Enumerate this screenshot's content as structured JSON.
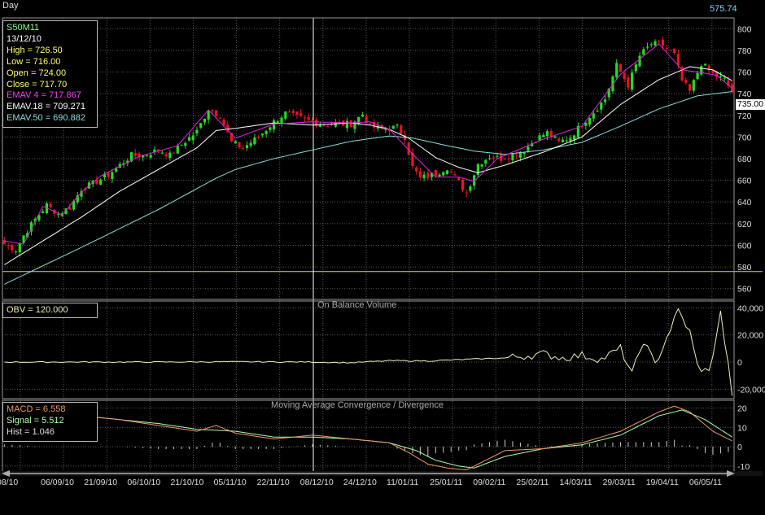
{
  "header": {
    "period": "Day",
    "last_value": "575.74",
    "price_tag": "735.00"
  },
  "info": {
    "price": [
      "S50M11",
      "13/12/10",
      "High  = 726.50",
      "Low   = 716.00",
      "Open  = 724.00",
      "Close = 717.70",
      "EMAV 4 = 717.867",
      "EMAV.18 = 709.271",
      "EMAV.50 = 690.882"
    ],
    "obv": "OBV = 120.000",
    "macd": [
      "MACD = 6.558",
      "Signal = 5.512",
      "Hist = 1.046"
    ]
  },
  "colors": {
    "bull": "#22dd22",
    "bear": "#ee1122",
    "ema4": "#dd22dd",
    "ema18": "#ffffff",
    "ema50": "#88dddd",
    "obv": "#eeeebb",
    "macd": "#ee9966",
    "signal": "#aaffaa",
    "hist": "#cccccc",
    "grid": "#5a5a5a",
    "crosshair": "#ffffff",
    "hline": "#dddd33"
  },
  "chart_data": [
    {
      "type": "candlestick",
      "series_names": [
        "EMAV 4",
        "EMAV.18",
        "EMAV.50"
      ],
      "y_ticks": [
        560,
        580,
        600,
        620,
        640,
        660,
        680,
        700,
        720,
        740,
        760,
        780,
        800
      ],
      "ylim": [
        550,
        810
      ],
      "horizontal_line": 575.74,
      "x_labels": [
        "08/10",
        "06/09/10",
        "21/09/10",
        "06/10/10",
        "21/10/10",
        "05/11/10",
        "22/11/10",
        "08/12/10",
        "24/12/10",
        "11/01/11",
        "25/01/11",
        "09/02/11",
        "25/02/11",
        "14/03/11",
        "29/03/11",
        "19/04/11",
        "06/05/11"
      ],
      "close_keypoints": [
        [
          0,
          601
        ],
        [
          3,
          596
        ],
        [
          5,
          609
        ],
        [
          8,
          624
        ],
        [
          11,
          637
        ],
        [
          14,
          629
        ],
        [
          17,
          635
        ],
        [
          20,
          652
        ],
        [
          23,
          657
        ],
        [
          27,
          665
        ],
        [
          30,
          674
        ],
        [
          33,
          683
        ],
        [
          36,
          683
        ],
        [
          40,
          688
        ],
        [
          43,
          683
        ],
        [
          46,
          693
        ],
        [
          50,
          705
        ],
        [
          53,
          726
        ],
        [
          56,
          720
        ],
        [
          59,
          695
        ],
        [
          62,
          690
        ],
        [
          66,
          700
        ],
        [
          70,
          714
        ],
        [
          73,
          722
        ],
        [
          76,
          718
        ],
        [
          79,
          715
        ],
        [
          83,
          711
        ],
        [
          87,
          712
        ],
        [
          90,
          712
        ],
        [
          93,
          721
        ],
        [
          95,
          710
        ],
        [
          98,
          707
        ],
        [
          102,
          709
        ],
        [
          104,
          700
        ],
        [
          106,
          672
        ],
        [
          108,
          662
        ],
        [
          112,
          666
        ],
        [
          115,
          672
        ],
        [
          118,
          658
        ],
        [
          120,
          648
        ],
        [
          123,
          675
        ],
        [
          126,
          682
        ],
        [
          129,
          680
        ],
        [
          132,
          684
        ],
        [
          135,
          688
        ],
        [
          138,
          698
        ],
        [
          141,
          704
        ],
        [
          144,
          695
        ],
        [
          147,
          700
        ],
        [
          150,
          712
        ],
        [
          153,
          723
        ],
        [
          156,
          735
        ],
        [
          159,
          766
        ],
        [
          162,
          748
        ],
        [
          165,
          775
        ],
        [
          168,
          786
        ],
        [
          171,
          785
        ],
        [
          174,
          776
        ],
        [
          176,
          752
        ],
        [
          178,
          742
        ],
        [
          181,
          768
        ],
        [
          184,
          758
        ],
        [
          187,
          753
        ],
        [
          189,
          742
        ]
      ],
      "emav4_keypoints": [
        [
          0,
          604
        ],
        [
          5,
          601
        ],
        [
          10,
          636
        ],
        [
          15,
          628
        ],
        [
          20,
          649
        ],
        [
          25,
          664
        ],
        [
          35,
          682
        ],
        [
          45,
          692
        ],
        [
          53,
          725
        ],
        [
          60,
          699
        ],
        [
          70,
          712
        ],
        [
          80,
          714
        ],
        [
          90,
          713
        ],
        [
          95,
          714
        ],
        [
          100,
          707
        ],
        [
          105,
          688
        ],
        [
          112,
          663
        ],
        [
          118,
          663
        ],
        [
          122,
          659
        ],
        [
          128,
          680
        ],
        [
          140,
          698
        ],
        [
          150,
          710
        ],
        [
          160,
          758
        ],
        [
          170,
          786
        ],
        [
          176,
          762
        ],
        [
          180,
          760
        ],
        [
          185,
          757
        ],
        [
          189,
          745
        ]
      ],
      "emav18_keypoints": [
        [
          0,
          582
        ],
        [
          10,
          604
        ],
        [
          20,
          626
        ],
        [
          30,
          650
        ],
        [
          40,
          670
        ],
        [
          50,
          690
        ],
        [
          55,
          706
        ],
        [
          60,
          708
        ],
        [
          70,
          713
        ],
        [
          80,
          711
        ],
        [
          90,
          713
        ],
        [
          95,
          711
        ],
        [
          100,
          707
        ],
        [
          105,
          699
        ],
        [
          112,
          681
        ],
        [
          118,
          672
        ],
        [
          123,
          667
        ],
        [
          130,
          674
        ],
        [
          140,
          686
        ],
        [
          150,
          700
        ],
        [
          160,
          730
        ],
        [
          170,
          753
        ],
        [
          178,
          765
        ],
        [
          184,
          762
        ],
        [
          189,
          752
        ]
      ],
      "emav50_keypoints": [
        [
          0,
          564
        ],
        [
          20,
          598
        ],
        [
          40,
          633
        ],
        [
          55,
          662
        ],
        [
          60,
          670
        ],
        [
          70,
          680
        ],
        [
          80,
          688
        ],
        [
          90,
          696
        ],
        [
          100,
          701
        ],
        [
          106,
          699
        ],
        [
          115,
          692
        ],
        [
          122,
          687
        ],
        [
          130,
          684
        ],
        [
          140,
          688
        ],
        [
          150,
          695
        ],
        [
          160,
          710
        ],
        [
          170,
          726
        ],
        [
          180,
          738
        ],
        [
          189,
          742
        ]
      ]
    },
    {
      "type": "line",
      "title": "On Balance Volume",
      "series_names": [
        "OBV"
      ],
      "y_ticks": [
        40000,
        20000,
        0,
        -20000
      ],
      "y_tick_labels": [
        "40,000",
        "20,000",
        "0",
        "-20,000"
      ],
      "ylim": [
        -27000,
        45000
      ],
      "obv_keypoints": [
        [
          0,
          0
        ],
        [
          40,
          0
        ],
        [
          60,
          200
        ],
        [
          80,
          0
        ],
        [
          90,
          -500
        ],
        [
          100,
          1000
        ],
        [
          110,
          800
        ],
        [
          120,
          2000
        ],
        [
          130,
          3000
        ],
        [
          140,
          6000
        ],
        [
          145,
          3000
        ],
        [
          150,
          5000
        ],
        [
          155,
          2000
        ],
        [
          160,
          10000
        ],
        [
          163,
          -9000
        ],
        [
          166,
          16000
        ],
        [
          169,
          -2000
        ],
        [
          172,
          18000
        ],
        [
          175,
          38000
        ],
        [
          178,
          22000
        ],
        [
          180,
          -3000
        ],
        [
          183,
          -8000
        ],
        [
          186,
          36000
        ],
        [
          189,
          -23000
        ]
      ]
    },
    {
      "type": "line",
      "title": "Moving Average Convergence / Divergence",
      "series_names": [
        "MACD",
        "Signal",
        "Hist"
      ],
      "y_ticks": [
        20,
        10,
        0,
        -10
      ],
      "ylim": [
        -13,
        24
      ],
      "macd_keypoints": [
        [
          0,
          13
        ],
        [
          10,
          15
        ],
        [
          20,
          16
        ],
        [
          30,
          14
        ],
        [
          40,
          11
        ],
        [
          50,
          8
        ],
        [
          55,
          11
        ],
        [
          60,
          7
        ],
        [
          70,
          4
        ],
        [
          80,
          6
        ],
        [
          90,
          4
        ],
        [
          100,
          2
        ],
        [
          105,
          -3
        ],
        [
          110,
          -9
        ],
        [
          115,
          -11
        ],
        [
          120,
          -12
        ],
        [
          125,
          -7
        ],
        [
          130,
          -2
        ],
        [
          140,
          -1
        ],
        [
          150,
          2
        ],
        [
          160,
          8
        ],
        [
          170,
          18
        ],
        [
          174,
          21
        ],
        [
          178,
          18
        ],
        [
          184,
          8
        ],
        [
          189,
          3
        ]
      ],
      "signal_keypoints": [
        [
          0,
          12
        ],
        [
          10,
          15
        ],
        [
          20,
          16
        ],
        [
          30,
          14
        ],
        [
          40,
          12
        ],
        [
          50,
          9
        ],
        [
          60,
          8
        ],
        [
          70,
          5
        ],
        [
          80,
          5
        ],
        [
          90,
          4
        ],
        [
          100,
          2
        ],
        [
          107,
          -2
        ],
        [
          112,
          -7
        ],
        [
          118,
          -10
        ],
        [
          122,
          -11
        ],
        [
          130,
          -5
        ],
        [
          140,
          -1
        ],
        [
          150,
          1
        ],
        [
          160,
          6
        ],
        [
          170,
          16
        ],
        [
          176,
          19
        ],
        [
          182,
          14
        ],
        [
          189,
          5
        ]
      ]
    }
  ]
}
